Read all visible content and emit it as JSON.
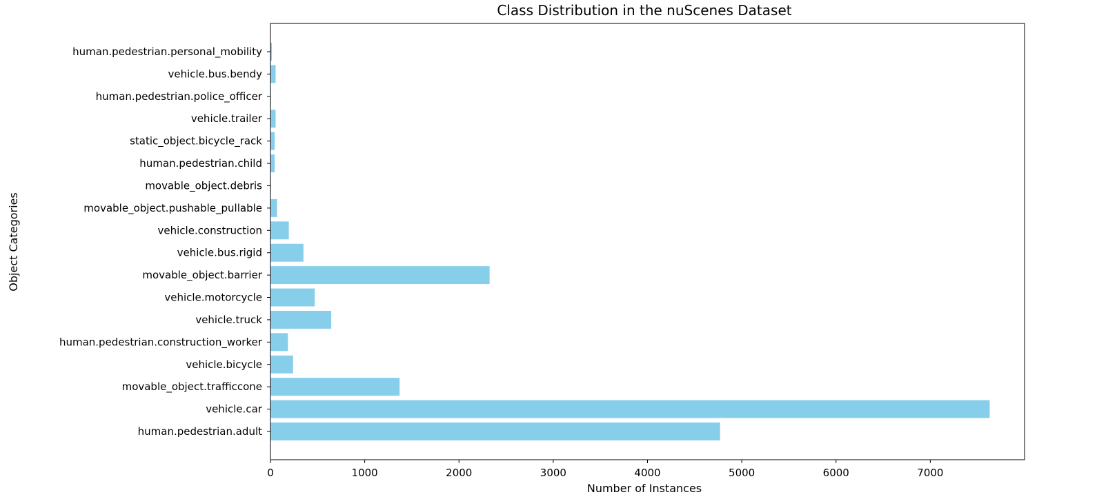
{
  "chart_data": {
    "type": "bar",
    "orientation": "horizontal",
    "title": "Class Distribution in the nuScenes Dataset",
    "xlabel": "Number of Instances",
    "ylabel": "Object Categories",
    "categories": [
      "human.pedestrian.adult",
      "vehicle.car",
      "movable_object.trafficcone",
      "vehicle.bicycle",
      "human.pedestrian.construction_worker",
      "vehicle.truck",
      "vehicle.motorcycle",
      "movable_object.barrier",
      "vehicle.bus.rigid",
      "vehicle.construction",
      "movable_object.pushable_pullable",
      "movable_object.debris",
      "human.pedestrian.child",
      "static_object.bicycle_rack",
      "vehicle.trailer",
      "human.pedestrian.police_officer",
      "vehicle.bus.bendy",
      "human.pedestrian.personal_mobility"
    ],
    "values": [
      4770,
      7630,
      1370,
      240,
      185,
      645,
      470,
      2325,
      350,
      195,
      70,
      5,
      45,
      45,
      55,
      5,
      55,
      15
    ],
    "xlim": [
      0,
      8000
    ],
    "xticks": [
      0,
      1000,
      2000,
      3000,
      4000,
      5000,
      6000,
      7000
    ],
    "bar_color": "#87CEEB",
    "grid": false
  }
}
